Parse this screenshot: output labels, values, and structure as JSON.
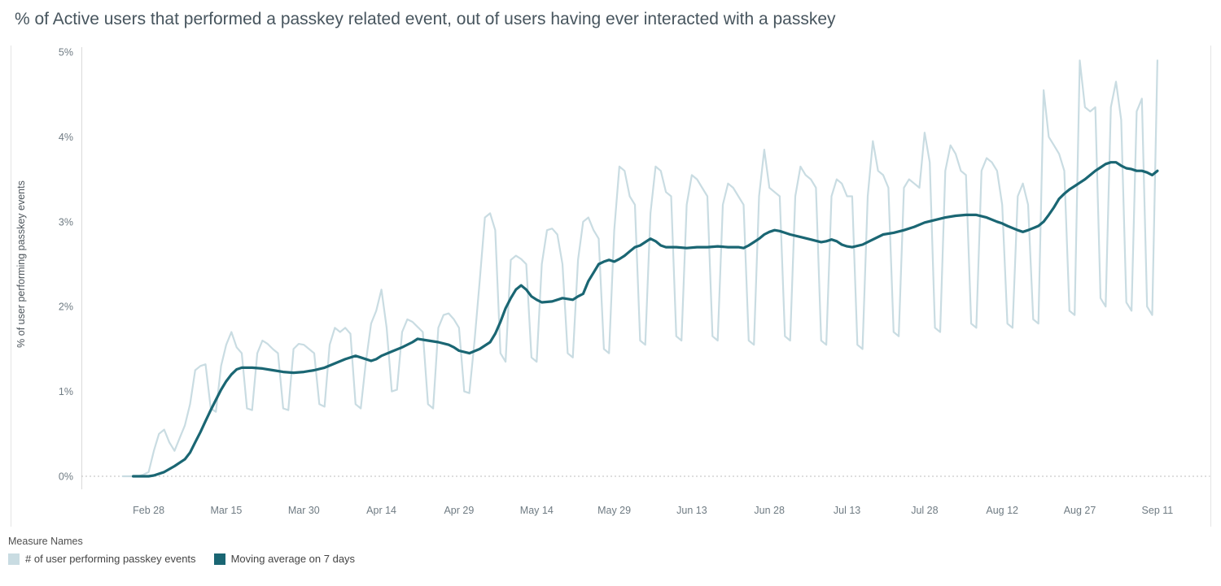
{
  "page": {
    "title": "% of Active users that performed a passkey related event, out of users having ever interacted with a passkey"
  },
  "legend": {
    "title": "Measure Names",
    "items": [
      {
        "label": "# of user performing passkey events",
        "color": "#c9dce2"
      },
      {
        "label": "Moving average on 7 days",
        "color": "#1a6673"
      }
    ]
  },
  "chart_data": {
    "type": "line",
    "title": "% of Active users that performed a passkey related event, out of users having ever interacted with a passkey",
    "xlabel": "",
    "ylabel": "% of user performing passkey events",
    "legend_position": "bottom",
    "grid": "zero-line-dotted-only",
    "y_axis": {
      "range": [
        0,
        5
      ],
      "unit": "%",
      "ticks": [
        {
          "v": 0,
          "label": "0%"
        },
        {
          "v": 1,
          "label": "1%"
        },
        {
          "v": 2,
          "label": "2%"
        },
        {
          "v": 3,
          "label": "3%"
        },
        {
          "v": 4,
          "label": "4%"
        },
        {
          "v": 5,
          "label": "5%"
        }
      ]
    },
    "x_axis": {
      "note": "day index 0 = Feb 23, daily data through day 200 = Sep 11",
      "range_days": [
        -8,
        206
      ],
      "ticks": [
        {
          "d": 5,
          "label": "Feb 28"
        },
        {
          "d": 20,
          "label": "Mar 15"
        },
        {
          "d": 35,
          "label": "Mar 30"
        },
        {
          "d": 50,
          "label": "Apr 14"
        },
        {
          "d": 65,
          "label": "Apr 29"
        },
        {
          "d": 80,
          "label": "May 14"
        },
        {
          "d": 95,
          "label": "May 29"
        },
        {
          "d": 110,
          "label": "Jun 13"
        },
        {
          "d": 125,
          "label": "Jun 28"
        },
        {
          "d": 140,
          "label": "Jul 13"
        },
        {
          "d": 155,
          "label": "Jul 28"
        },
        {
          "d": 170,
          "label": "Aug 12"
        },
        {
          "d": 185,
          "label": "Aug 27"
        },
        {
          "d": 200,
          "label": "Sep 11"
        }
      ]
    },
    "series": [
      {
        "name": "# of user performing passkey events",
        "color": "#c9dce2",
        "start_day": 0,
        "values": [
          0,
          0,
          0,
          0,
          0.02,
          0.05,
          0.3,
          0.5,
          0.55,
          0.4,
          0.3,
          0.45,
          0.6,
          0.85,
          1.25,
          1.3,
          1.32,
          0.8,
          0.76,
          1.3,
          1.55,
          1.7,
          1.52,
          1.45,
          0.8,
          0.78,
          1.45,
          1.6,
          1.56,
          1.5,
          1.45,
          0.8,
          0.78,
          1.5,
          1.56,
          1.55,
          1.5,
          1.45,
          0.85,
          0.82,
          1.55,
          1.75,
          1.7,
          1.75,
          1.68,
          0.85,
          0.8,
          1.35,
          1.8,
          1.95,
          2.2,
          1.75,
          1.0,
          1.02,
          1.7,
          1.85,
          1.82,
          1.76,
          1.7,
          0.85,
          0.8,
          1.75,
          1.9,
          1.92,
          1.85,
          1.75,
          1.0,
          0.98,
          1.6,
          2.3,
          3.05,
          3.1,
          2.9,
          1.45,
          1.35,
          2.55,
          2.6,
          2.56,
          2.5,
          1.4,
          1.35,
          2.5,
          2.9,
          2.92,
          2.85,
          2.5,
          1.45,
          1.4,
          2.55,
          3.0,
          3.05,
          2.9,
          2.8,
          1.5,
          1.45,
          2.9,
          3.65,
          3.6,
          3.3,
          3.2,
          1.6,
          1.55,
          3.1,
          3.65,
          3.6,
          3.35,
          3.3,
          1.65,
          1.6,
          3.2,
          3.55,
          3.5,
          3.4,
          3.3,
          1.65,
          1.6,
          3.2,
          3.45,
          3.4,
          3.3,
          3.2,
          1.6,
          1.55,
          3.3,
          3.85,
          3.4,
          3.35,
          3.3,
          1.65,
          1.6,
          3.3,
          3.65,
          3.55,
          3.5,
          3.4,
          1.6,
          1.55,
          3.3,
          3.5,
          3.45,
          3.3,
          3.3,
          1.55,
          1.5,
          3.3,
          3.95,
          3.6,
          3.55,
          3.4,
          1.7,
          1.65,
          3.4,
          3.5,
          3.45,
          3.4,
          4.05,
          3.7,
          1.75,
          1.7,
          3.6,
          3.9,
          3.8,
          3.6,
          3.55,
          1.8,
          1.75,
          3.6,
          3.75,
          3.7,
          3.6,
          3.2,
          1.8,
          1.75,
          3.3,
          3.45,
          3.2,
          1.85,
          1.8,
          4.55,
          4.0,
          3.9,
          3.8,
          3.6,
          1.95,
          1.9,
          4.9,
          4.35,
          4.3,
          4.35,
          2.1,
          2.0,
          4.35,
          4.65,
          4.2,
          2.05,
          1.95,
          4.3,
          4.45,
          2.0,
          1.9,
          4.9
        ]
      },
      {
        "name": "Moving average on 7 days",
        "color": "#1a6673",
        "points": [
          [
            2,
            0
          ],
          [
            5,
            0
          ],
          [
            6,
            0.01
          ],
          [
            8,
            0.05
          ],
          [
            10,
            0.12
          ],
          [
            12,
            0.2
          ],
          [
            13,
            0.28
          ],
          [
            14,
            0.4
          ],
          [
            15,
            0.52
          ],
          [
            16,
            0.65
          ],
          [
            17,
            0.78
          ],
          [
            18,
            0.9
          ],
          [
            19,
            1.02
          ],
          [
            20,
            1.12
          ],
          [
            21,
            1.2
          ],
          [
            22,
            1.26
          ],
          [
            23,
            1.28
          ],
          [
            25,
            1.28
          ],
          [
            27,
            1.27
          ],
          [
            29,
            1.25
          ],
          [
            31,
            1.23
          ],
          [
            33,
            1.22
          ],
          [
            35,
            1.23
          ],
          [
            37,
            1.25
          ],
          [
            39,
            1.28
          ],
          [
            41,
            1.33
          ],
          [
            43,
            1.38
          ],
          [
            45,
            1.42
          ],
          [
            46,
            1.4
          ],
          [
            48,
            1.36
          ],
          [
            49,
            1.38
          ],
          [
            50,
            1.42
          ],
          [
            52,
            1.47
          ],
          [
            54,
            1.52
          ],
          [
            56,
            1.58
          ],
          [
            57,
            1.62
          ],
          [
            59,
            1.6
          ],
          [
            61,
            1.58
          ],
          [
            63,
            1.55
          ],
          [
            64,
            1.52
          ],
          [
            65,
            1.48
          ],
          [
            67,
            1.45
          ],
          [
            69,
            1.5
          ],
          [
            71,
            1.58
          ],
          [
            72,
            1.68
          ],
          [
            73,
            1.82
          ],
          [
            74,
            1.98
          ],
          [
            75,
            2.1
          ],
          [
            76,
            2.2
          ],
          [
            77,
            2.25
          ],
          [
            78,
            2.2
          ],
          [
            79,
            2.12
          ],
          [
            80,
            2.08
          ],
          [
            81,
            2.05
          ],
          [
            83,
            2.06
          ],
          [
            85,
            2.1
          ],
          [
            87,
            2.08
          ],
          [
            88,
            2.12
          ],
          [
            89,
            2.15
          ],
          [
            90,
            2.3
          ],
          [
            91,
            2.4
          ],
          [
            92,
            2.5
          ],
          [
            93,
            2.53
          ],
          [
            94,
            2.55
          ],
          [
            95,
            2.53
          ],
          [
            96,
            2.56
          ],
          [
            97,
            2.6
          ],
          [
            98,
            2.65
          ],
          [
            99,
            2.7
          ],
          [
            100,
            2.72
          ],
          [
            101,
            2.76
          ],
          [
            102,
            2.8
          ],
          [
            103,
            2.77
          ],
          [
            104,
            2.72
          ],
          [
            105,
            2.7
          ],
          [
            107,
            2.7
          ],
          [
            109,
            2.69
          ],
          [
            111,
            2.7
          ],
          [
            113,
            2.7
          ],
          [
            115,
            2.71
          ],
          [
            117,
            2.7
          ],
          [
            119,
            2.7
          ],
          [
            120,
            2.69
          ],
          [
            121,
            2.72
          ],
          [
            122,
            2.76
          ],
          [
            123,
            2.8
          ],
          [
            124,
            2.85
          ],
          [
            125,
            2.88
          ],
          [
            126,
            2.9
          ],
          [
            127,
            2.89
          ],
          [
            128,
            2.87
          ],
          [
            129,
            2.85
          ],
          [
            131,
            2.82
          ],
          [
            133,
            2.79
          ],
          [
            135,
            2.76
          ],
          [
            136,
            2.77
          ],
          [
            137,
            2.79
          ],
          [
            138,
            2.77
          ],
          [
            139,
            2.73
          ],
          [
            140,
            2.71
          ],
          [
            141,
            2.7
          ],
          [
            143,
            2.73
          ],
          [
            145,
            2.79
          ],
          [
            147,
            2.85
          ],
          [
            149,
            2.87
          ],
          [
            151,
            2.9
          ],
          [
            153,
            2.94
          ],
          [
            155,
            2.99
          ],
          [
            157,
            3.02
          ],
          [
            159,
            3.05
          ],
          [
            161,
            3.07
          ],
          [
            163,
            3.08
          ],
          [
            165,
            3.08
          ],
          [
            167,
            3.05
          ],
          [
            169,
            3.0
          ],
          [
            170,
            2.98
          ],
          [
            171,
            2.95
          ],
          [
            173,
            2.9
          ],
          [
            174,
            2.88
          ],
          [
            175,
            2.9
          ],
          [
            177,
            2.95
          ],
          [
            178,
            3.0
          ],
          [
            179,
            3.08
          ],
          [
            180,
            3.17
          ],
          [
            181,
            3.27
          ],
          [
            182,
            3.33
          ],
          [
            183,
            3.38
          ],
          [
            184,
            3.42
          ],
          [
            185,
            3.46
          ],
          [
            186,
            3.5
          ],
          [
            187,
            3.55
          ],
          [
            188,
            3.6
          ],
          [
            189,
            3.64
          ],
          [
            190,
            3.68
          ],
          [
            191,
            3.7
          ],
          [
            192,
            3.7
          ],
          [
            193,
            3.66
          ],
          [
            194,
            3.63
          ],
          [
            195,
            3.62
          ],
          [
            196,
            3.6
          ],
          [
            197,
            3.6
          ],
          [
            198,
            3.58
          ],
          [
            199,
            3.55
          ],
          [
            200,
            3.6
          ]
        ]
      }
    ]
  }
}
